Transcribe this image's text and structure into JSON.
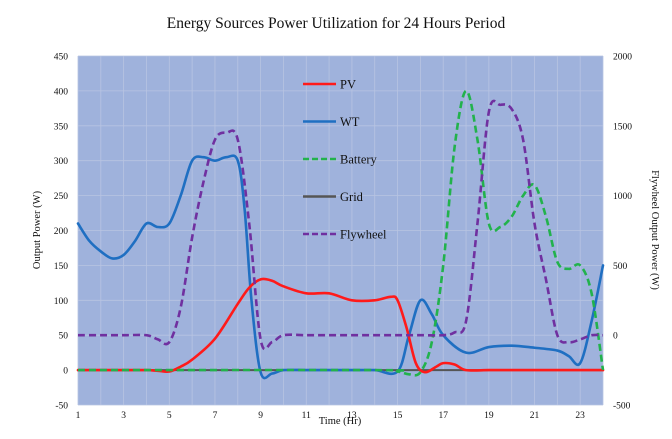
{
  "chart_data": {
    "type": "line",
    "title": "Energy Sources Power Utilization for 24 Hours Period",
    "xlabel": "Time (Hr)",
    "ylabel": "Output Power (W)",
    "y2label": "Flywheel Output Power (W)",
    "xlim": [
      1,
      24
    ],
    "ylim": [
      -50,
      450
    ],
    "y2lim": [
      -500,
      2000
    ],
    "xticks": [
      "1",
      "3",
      "5",
      "7",
      "9",
      "11",
      "13",
      "15",
      "17",
      "19",
      "21",
      "23"
    ],
    "yticks": [
      "-50",
      "0",
      "50",
      "100",
      "150",
      "200",
      "250",
      "300",
      "350",
      "400",
      "450"
    ],
    "y2ticks": [
      "-500",
      "0",
      "500",
      "1000",
      "1500",
      "2000"
    ],
    "grid": true,
    "legend_position": "inside-center",
    "plot_background": "#9fb2dc",
    "series": [
      {
        "name": "PV",
        "color": "#ff1a1a",
        "dash": "solid",
        "axis": "left",
        "x": [
          1,
          2,
          3,
          4,
          4.5,
          5,
          5.5,
          6,
          7,
          8,
          8.5,
          9,
          9.5,
          10,
          11,
          12,
          13,
          14,
          14.7,
          15,
          15.4,
          15.8,
          16.2,
          16.7,
          17,
          17.5,
          18,
          19,
          20,
          24
        ],
        "values": [
          0,
          0,
          0,
          0,
          -1,
          -2,
          5,
          15,
          45,
          95,
          118,
          130,
          128,
          120,
          110,
          110,
          100,
          100,
          105,
          100,
          60,
          10,
          -3,
          5,
          10,
          8,
          0,
          0,
          0,
          0
        ]
      },
      {
        "name": "WT",
        "color": "#1f6fc2",
        "dash": "solid",
        "axis": "left",
        "x": [
          1,
          1.5,
          2,
          2.5,
          3,
          3.5,
          4,
          4.5,
          5,
          5.5,
          6,
          6.5,
          7,
          7.5,
          8,
          8.3,
          8.6,
          9,
          9.5,
          10,
          11,
          12,
          13,
          14,
          15,
          15.5,
          16,
          16.5,
          17,
          18,
          19,
          20,
          21,
          22,
          22.5,
          23,
          23.5,
          24
        ],
        "values": [
          210,
          185,
          170,
          160,
          165,
          185,
          210,
          205,
          210,
          250,
          300,
          305,
          300,
          305,
          300,
          230,
          100,
          -3,
          -5,
          0,
          0,
          0,
          0,
          0,
          -2,
          50,
          100,
          80,
          50,
          25,
          33,
          35,
          32,
          28,
          20,
          10,
          70,
          150
        ]
      },
      {
        "name": "Battery",
        "color": "#22b24c",
        "dash": "dashed",
        "axis": "left",
        "x": [
          1,
          14,
          15,
          15.5,
          16,
          16.5,
          17,
          17.5,
          18,
          18.5,
          19,
          19.5,
          20,
          20.5,
          21,
          21.5,
          22,
          22.5,
          23,
          23.5,
          24
        ],
        "values": [
          0,
          0,
          -2,
          -6,
          -3,
          40,
          150,
          320,
          400,
          330,
          210,
          205,
          220,
          250,
          265,
          220,
          155,
          145,
          150,
          110,
          0
        ]
      },
      {
        "name": "Grid",
        "color": "#555555",
        "dash": "solid",
        "axis": "left",
        "x": [
          1,
          24
        ],
        "values": [
          0,
          0
        ]
      },
      {
        "name": "Flywheel",
        "color": "#7030a0",
        "dash": "dashed",
        "axis": "right",
        "x": [
          1,
          2,
          3,
          4,
          4.5,
          5,
          5.5,
          6,
          6.5,
          7,
          7.5,
          8,
          8.5,
          9,
          9.5,
          10,
          11,
          12,
          13,
          14,
          15,
          16,
          17,
          17.5,
          18,
          18.5,
          19,
          19.5,
          20,
          20.5,
          21,
          21.5,
          22,
          22.5,
          23,
          23.5,
          24
        ],
        "values": [
          0,
          0,
          0,
          0,
          -30,
          -50,
          200,
          700,
          1100,
          1400,
          1450,
          1400,
          800,
          -30,
          -50,
          0,
          0,
          0,
          0,
          0,
          0,
          0,
          0,
          20,
          100,
          800,
          1600,
          1650,
          1620,
          1400,
          800,
          400,
          0,
          -50,
          -30,
          0,
          0
        ]
      }
    ]
  }
}
